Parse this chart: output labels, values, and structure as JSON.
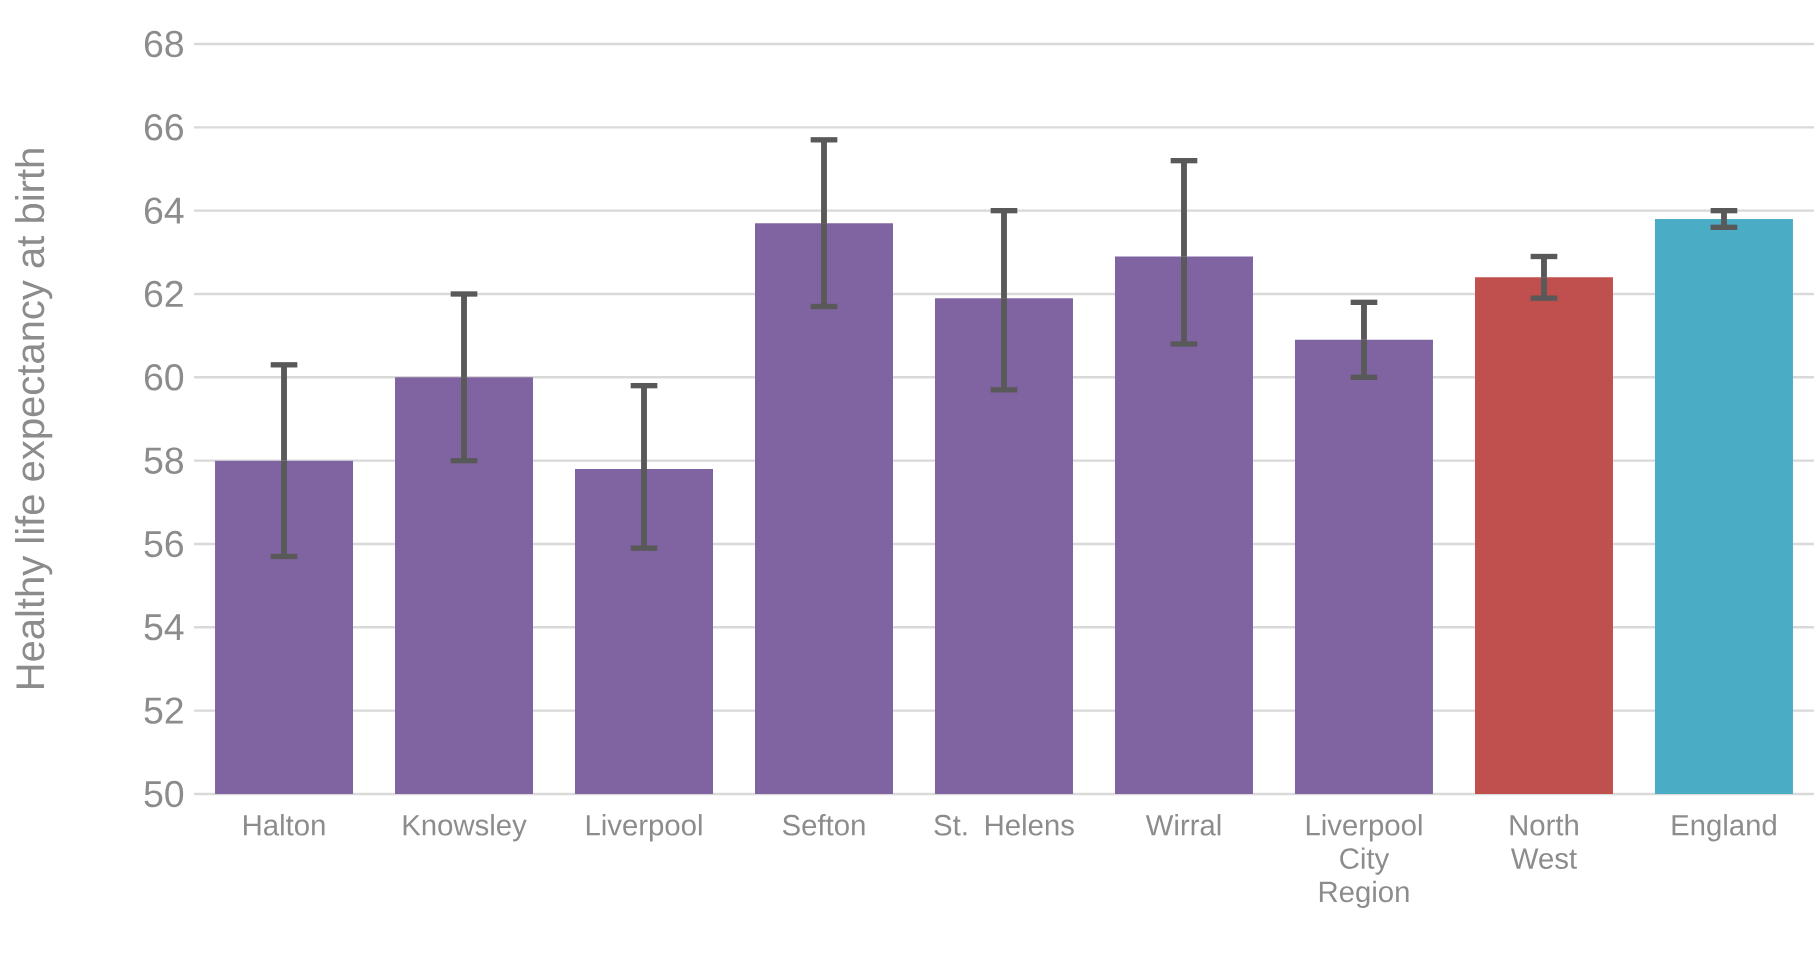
{
  "chart_data": {
    "type": "bar",
    "ylabel": "Healthy life expectancy at birth",
    "categories": [
      "Halton",
      "Knowsley",
      "Liverpool",
      "Sefton",
      "St. Helens",
      "Wirral",
      "Liverpool City Region",
      "North West",
      "England"
    ],
    "values": [
      58.0,
      60.0,
      57.8,
      63.7,
      61.9,
      62.9,
      60.9,
      62.4,
      63.8
    ],
    "errors": [
      [
        55.7,
        60.3
      ],
      [
        58.0,
        62.0
      ],
      [
        55.9,
        59.8
      ],
      [
        61.7,
        65.7
      ],
      [
        59.7,
        64.0
      ],
      [
        60.8,
        65.2
      ],
      [
        60.0,
        61.8
      ],
      [
        61.9,
        62.9
      ],
      [
        63.6,
        64.0
      ]
    ],
    "colors": [
      "#8064a2",
      "#8064a2",
      "#8064a2",
      "#8064a2",
      "#8064a2",
      "#8064a2",
      "#8064a2",
      "#c0504d",
      "#4bacc6"
    ],
    "ylim": [
      50,
      68
    ],
    "yticks": [
      50,
      52,
      54,
      56,
      58,
      60,
      62,
      64,
      66,
      68
    ],
    "grid": "y"
  }
}
